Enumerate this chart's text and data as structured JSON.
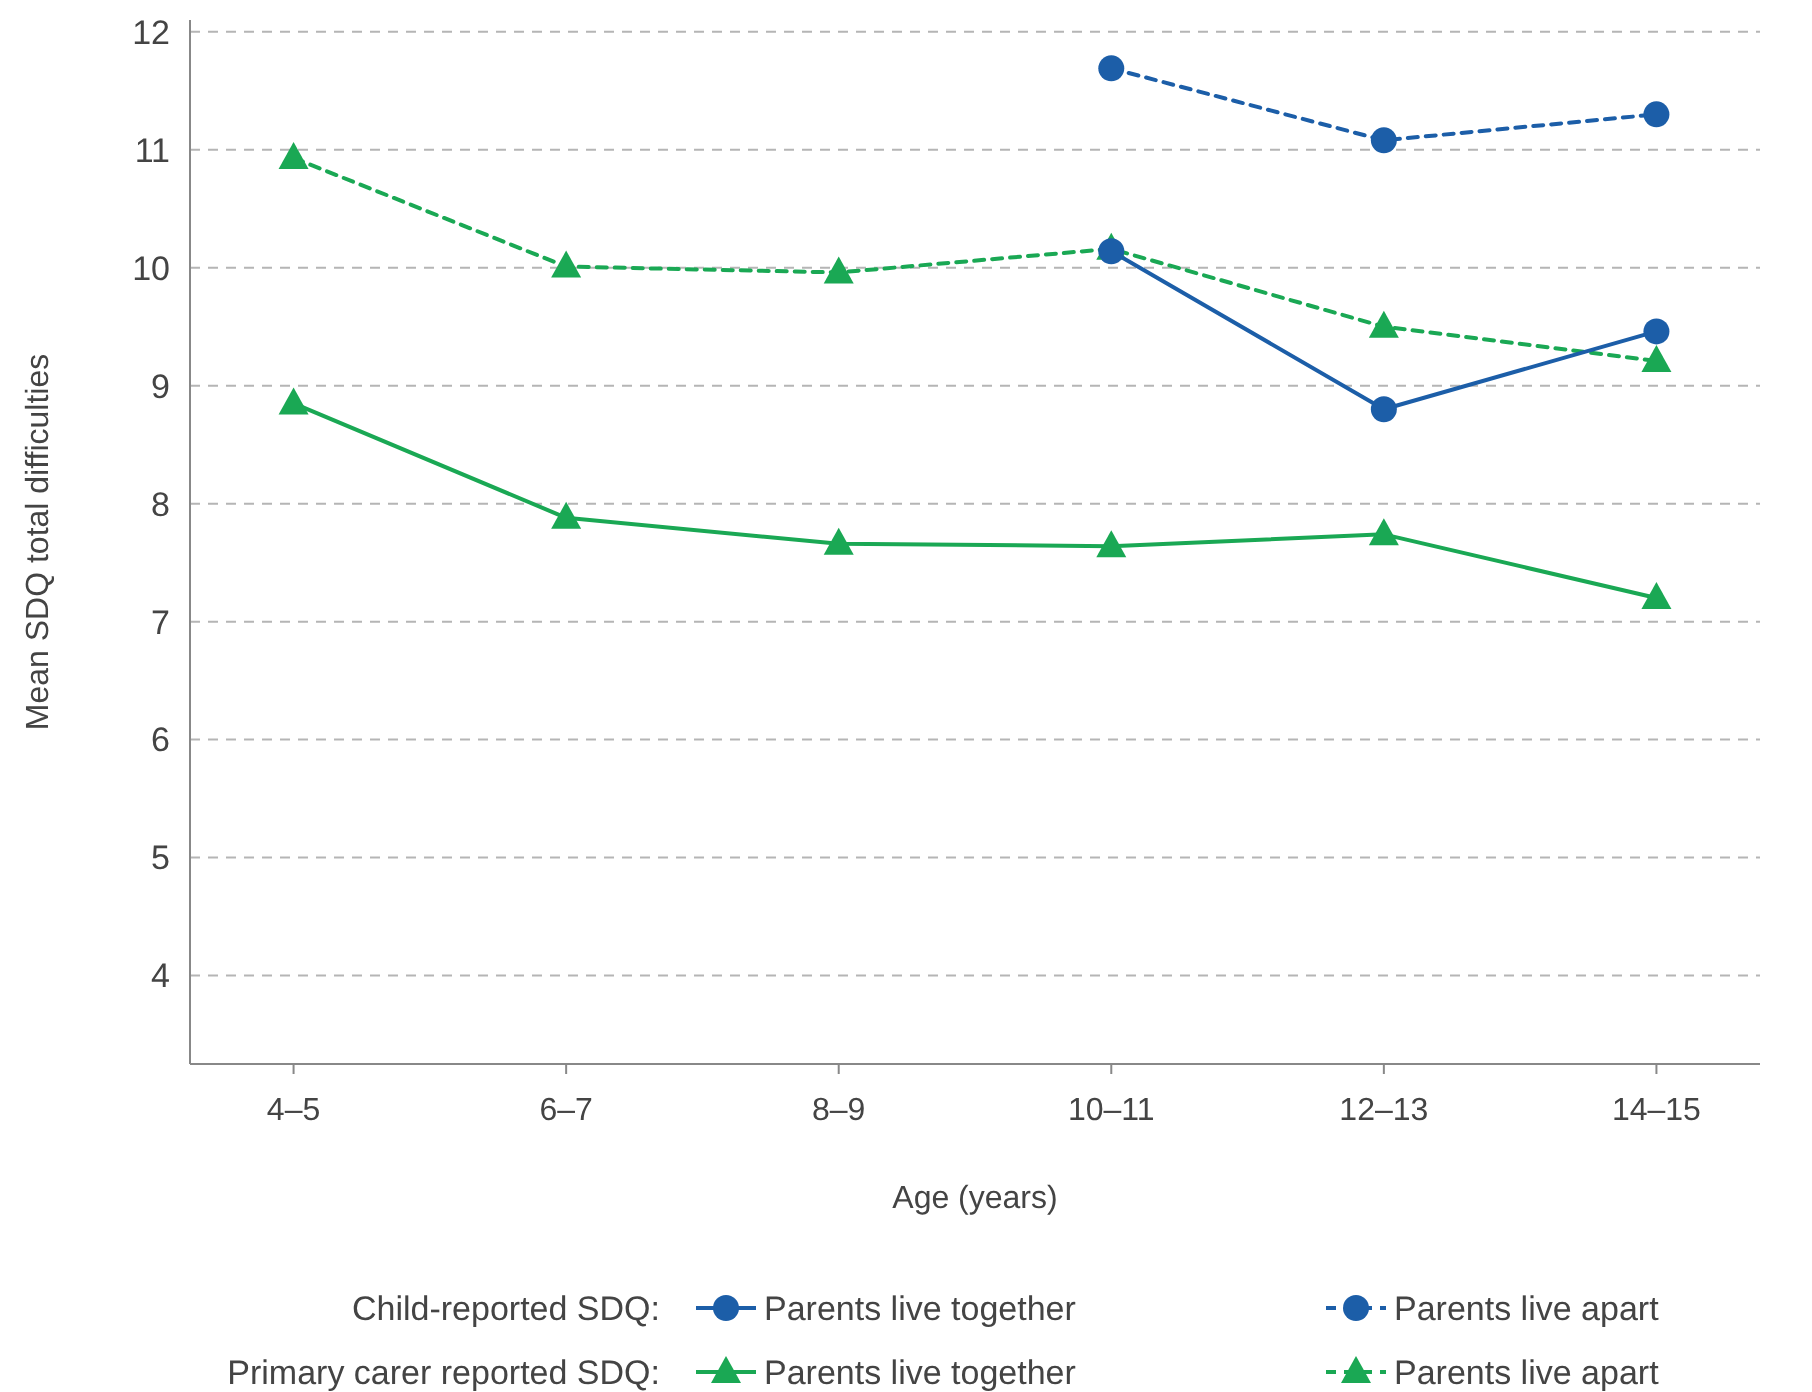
{
  "chart_data": {
    "type": "line",
    "xlabel": "Age (years)",
    "ylabel": "Mean SDQ total difficulties",
    "categories": [
      "4–5",
      "6–7",
      "8–9",
      "10–11",
      "12–13",
      "14–15"
    ],
    "ylim": [
      3.25,
      12.1
    ],
    "yticks": [
      4,
      5,
      6,
      7,
      8,
      9,
      10,
      11,
      12
    ],
    "grid": "y",
    "legend": "bottom",
    "annotations": [
      "Child-reported SDQ:",
      "Primary carer reported SDQ:"
    ],
    "series": [
      {
        "name": "Parents live together",
        "color": "#1c5ea8",
        "marker": "circle",
        "line_style": "solid",
        "values": [
          null,
          null,
          null,
          10.14,
          8.8,
          9.46
        ]
      },
      {
        "name": "Parents live apart",
        "color": "#1c5ea8",
        "marker": "circle",
        "line_style": "dashed",
        "values": [
          null,
          null,
          null,
          11.69,
          11.08,
          11.3
        ]
      },
      {
        "name": "Parents live together",
        "color": "#1aa854",
        "marker": "triangle",
        "line_style": "solid",
        "values": [
          8.85,
          7.88,
          7.66,
          7.64,
          7.74,
          7.2
        ]
      },
      {
        "name": "Parents live apart",
        "color": "#1aa854",
        "marker": "triangle",
        "line_style": "dashed",
        "values": [
          10.93,
          10.01,
          9.96,
          10.16,
          9.5,
          9.21
        ]
      }
    ]
  }
}
